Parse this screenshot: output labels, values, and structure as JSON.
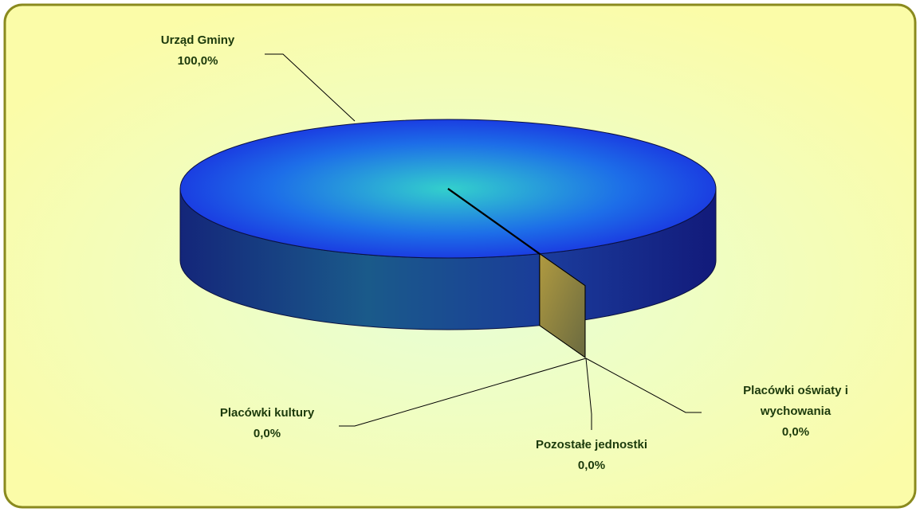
{
  "chart_data": {
    "type": "pie",
    "categories": [
      "Urząd Gminy",
      "Placówki kultury",
      "Pozostałe jednostki",
      "Placówki oświaty i wychowania"
    ],
    "values": [
      100,
      0,
      0,
      0
    ],
    "value_labels": [
      "100,0%",
      "0,0%",
      "0,0%",
      "0,0%"
    ],
    "colors": [
      "#1a44d8",
      "#8a7a2a",
      "#8a7a2a",
      "#8a7a2a"
    ]
  }
}
